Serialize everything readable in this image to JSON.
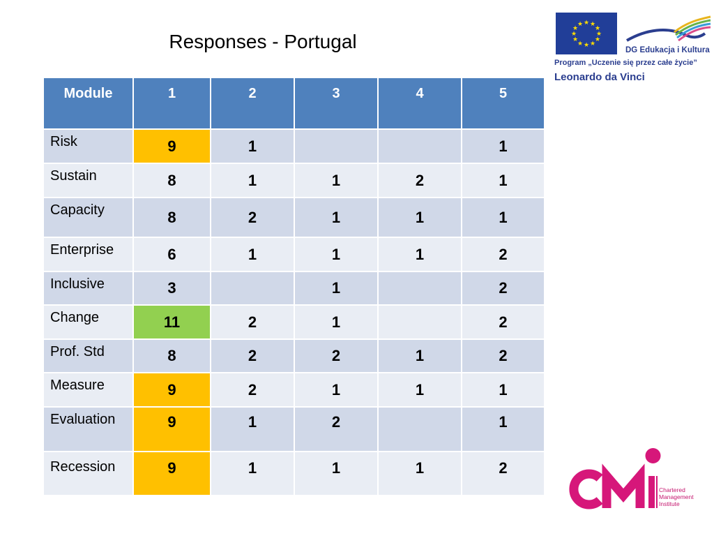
{
  "slide": {
    "title": "Responses - Portugal"
  },
  "logo_eu": {
    "dg_text": "DG Edukacja i Kultura",
    "program_text": "Program „Uczenie się przez całe życie”",
    "leonardo_text": "Leonardo da Vinci",
    "flag_color": "#213e98",
    "star_color": "#ffdd00"
  },
  "logo_cmi": {
    "letters": "CMI",
    "subtitle_lines": [
      "Chartered",
      "Management",
      "Institute"
    ],
    "color": "#d6177a"
  },
  "table": {
    "headers": [
      "Module",
      "1",
      "2",
      "3",
      "4",
      "5"
    ],
    "rows": [
      {
        "module": "Risk",
        "values": [
          "9",
          "1",
          "",
          "",
          "1"
        ],
        "highlight": "orange"
      },
      {
        "module": "Sustain",
        "values": [
          "8",
          "1",
          "1",
          "2",
          "1"
        ],
        "highlight": ""
      },
      {
        "module": "Capacity",
        "values": [
          "8",
          "2",
          "1",
          "1",
          "1"
        ],
        "highlight": ""
      },
      {
        "module": "Enterprise",
        "values": [
          "6",
          "1",
          "1",
          "1",
          "2"
        ],
        "highlight": ""
      },
      {
        "module": "Inclusive",
        "values": [
          "3",
          "",
          "1",
          "",
          "2"
        ],
        "highlight": ""
      },
      {
        "module": "Change",
        "values": [
          "11",
          "2",
          "1",
          "",
          "2"
        ],
        "highlight": "green"
      },
      {
        "module": "Prof. Std",
        "values": [
          "8",
          "2",
          "2",
          "1",
          "2"
        ],
        "highlight": ""
      },
      {
        "module": "Measure",
        "values": [
          "9",
          "2",
          "1",
          "1",
          "1"
        ],
        "highlight": "orange"
      },
      {
        "module": "Evaluation",
        "values": [
          "9",
          "1",
          "2",
          "",
          "1"
        ],
        "highlight": "orange"
      },
      {
        "module": "Recession",
        "values": [
          "9",
          "1",
          "1",
          "1",
          "2"
        ],
        "highlight": "orange"
      }
    ],
    "colors": {
      "header": "#4f81bd",
      "row_dark": "#d0d8e8",
      "row_light": "#e9edf4",
      "orange": "#ffc000",
      "green": "#92d050"
    }
  }
}
